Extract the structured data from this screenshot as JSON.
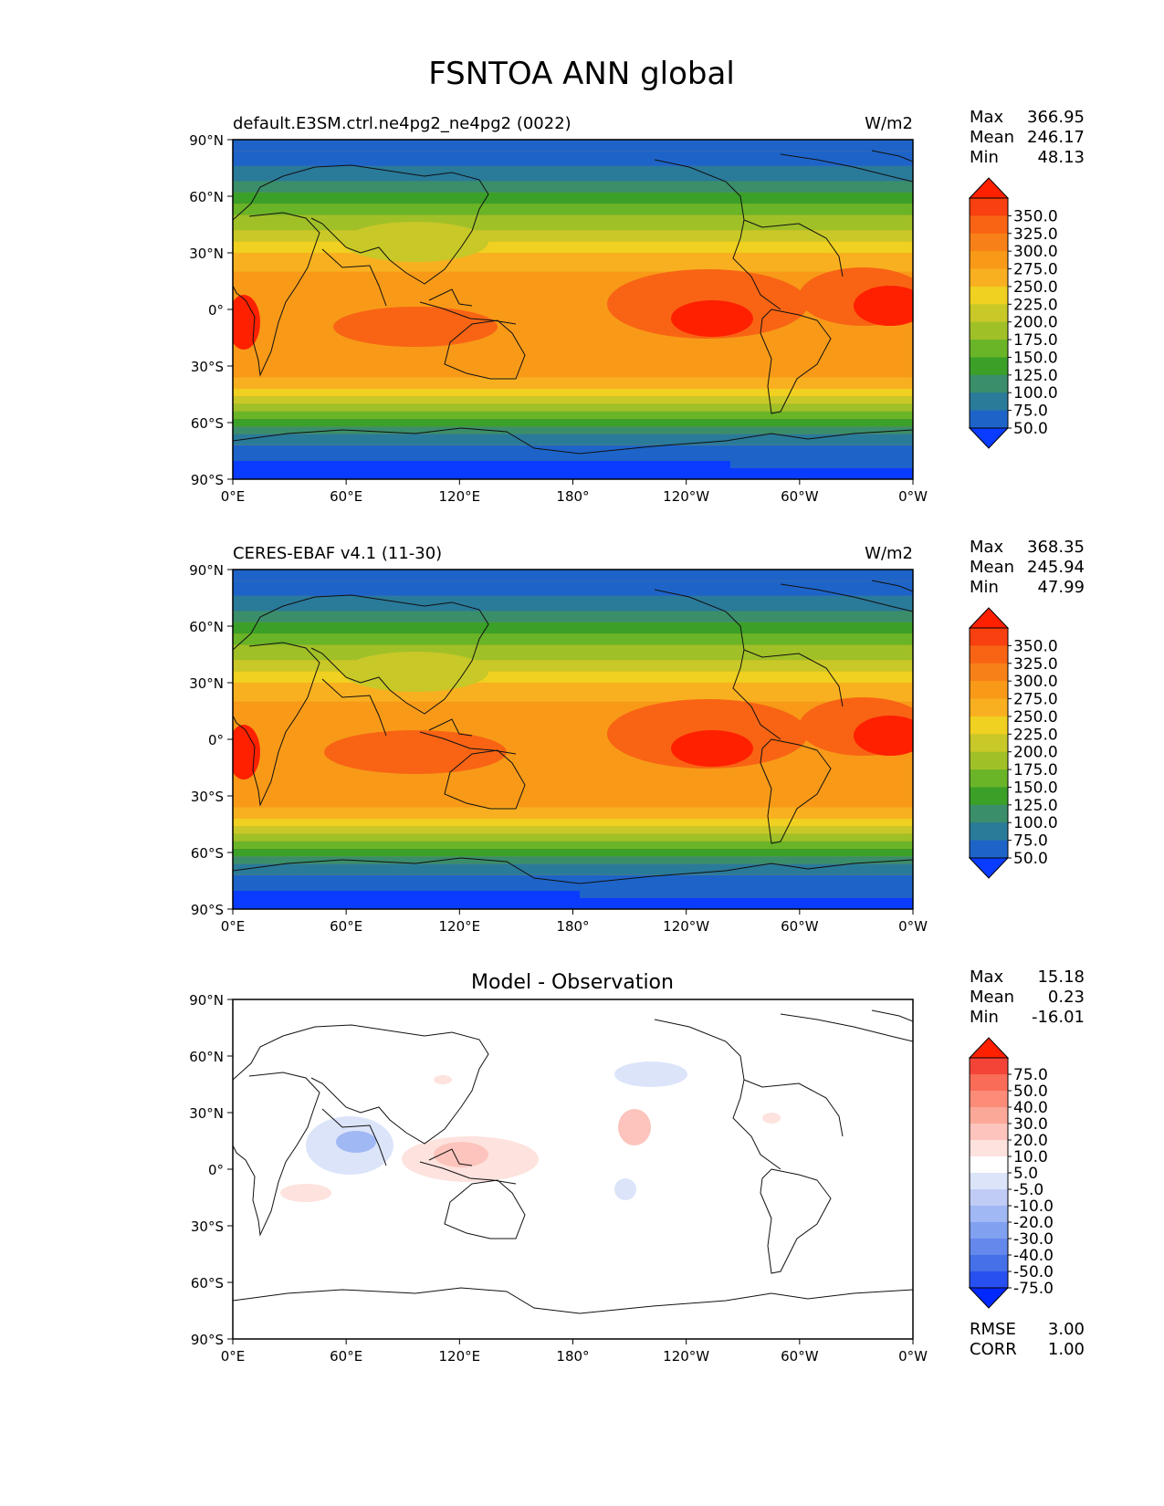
{
  "title": "FSNTOA ANN global",
  "lon_ticks": [
    "0°E",
    "60°E",
    "120°E",
    "180°",
    "120°W",
    "60°W",
    "0°W"
  ],
  "lat_ticks": [
    "90°N",
    "60°N",
    "30°N",
    "0°",
    "30°S",
    "60°S",
    "90°S"
  ],
  "colors": {
    "field_levels": [
      "#0a3cff",
      "#1e64c8",
      "#2a7a9a",
      "#3a8e6a",
      "#3aa028",
      "#6ab428",
      "#a0c028",
      "#c8c828",
      "#f0d020",
      "#f8b020",
      "#f89a18",
      "#f88018",
      "#f86414",
      "#f84010",
      "#ff2000"
    ],
    "diff_levels": [
      "#0028ff",
      "#2850f0",
      "#4470e8",
      "#6488ec",
      "#80a0f0",
      "#a0b8f4",
      "#c0ccf6",
      "#dce4fa",
      "#ffffff",
      "#fde2de",
      "#fcc4bc",
      "#fca898",
      "#fc8c78",
      "#f86c58",
      "#f44438",
      "#ff2000"
    ]
  },
  "chart_data": [
    {
      "type": "heatmap",
      "subtitle": "default.E3SM.ctrl.ne4pg2_ne4pg2 (0022)",
      "units": "W/m2",
      "stats": [
        {
          "label": "Max",
          "value": "366.95"
        },
        {
          "label": "Mean",
          "value": "246.17"
        },
        {
          "label": "Min",
          "value": "48.13"
        }
      ],
      "colorbar_labels": [
        "350.0",
        "325.0",
        "300.0",
        "275.0",
        "250.0",
        "225.0",
        "200.0",
        "175.0",
        "150.0",
        "125.0",
        "100.0",
        "75.0",
        "50.0"
      ],
      "xlim": [
        0,
        360
      ],
      "ylim": [
        -90,
        90
      ]
    },
    {
      "type": "heatmap",
      "subtitle": "CERES-EBAF v4.1 (11-30)",
      "units": "W/m2",
      "stats": [
        {
          "label": "Max",
          "value": "368.35"
        },
        {
          "label": "Mean",
          "value": "245.94"
        },
        {
          "label": "Min",
          "value": "47.99"
        }
      ],
      "colorbar_labels": [
        "350.0",
        "325.0",
        "300.0",
        "275.0",
        "250.0",
        "225.0",
        "200.0",
        "175.0",
        "150.0",
        "125.0",
        "100.0",
        "75.0",
        "50.0"
      ],
      "xlim": [
        0,
        360
      ],
      "ylim": [
        -90,
        90
      ]
    },
    {
      "type": "heatmap",
      "subtitle": "Model - Observation",
      "units": "",
      "stats": [
        {
          "label": "Max",
          "value": "15.18"
        },
        {
          "label": "Mean",
          "value": "0.23"
        },
        {
          "label": "Min",
          "value": "-16.01"
        }
      ],
      "colorbar_labels": [
        "75.0",
        "50.0",
        "40.0",
        "30.0",
        "20.0",
        "10.0",
        "5.0",
        "-5.0",
        "-10.0",
        "-20.0",
        "-30.0",
        "-40.0",
        "-50.0",
        "-75.0"
      ],
      "metrics": [
        {
          "label": "RMSE",
          "value": "3.00"
        },
        {
          "label": "CORR",
          "value": "1.00"
        }
      ],
      "xlim": [
        0,
        360
      ],
      "ylim": [
        -90,
        90
      ]
    }
  ]
}
